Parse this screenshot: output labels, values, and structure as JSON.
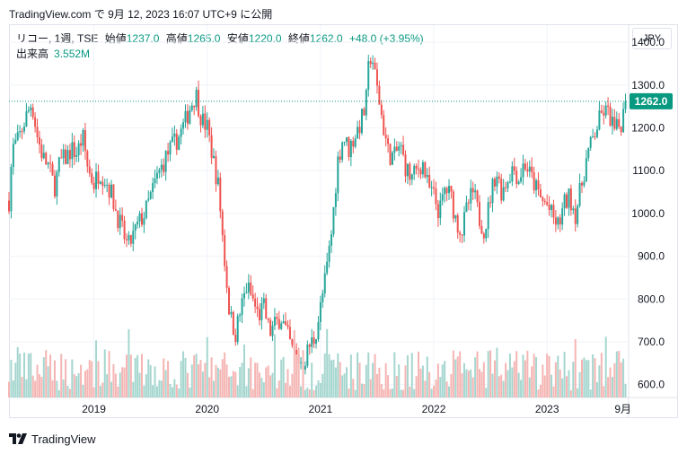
{
  "header": {
    "source": "TradingView.com",
    "connector": "で",
    "timestamp": "9月 12, 2023 16:07 UTC+9",
    "action": "に公開"
  },
  "legend": {
    "symbol": "リコー, 1週, TSE",
    "open_label": "始値",
    "open": "1237.0",
    "high_label": "高値",
    "high": "1265.0",
    "low_label": "安値",
    "low": "1220.0",
    "close_label": "終値",
    "close": "1262.0",
    "change": "+48.0 (+3.95%)",
    "volume_label": "出来高",
    "volume": "3.552M"
  },
  "currency": "JPY",
  "footer": {
    "logo_text": "TradingView"
  },
  "colors": {
    "up": "#26a69a",
    "down": "#ef5350",
    "up_volume": "#a5d6cf",
    "down_volume": "#f4b5b3",
    "price_line": "#089981",
    "grid": "#f0f3fa"
  },
  "chart_data": {
    "type": "candlestick",
    "timeframe": "1週",
    "y_ticks": [
      600,
      700,
      800,
      900,
      1000,
      1100,
      1200,
      1300,
      1400
    ],
    "y_tick_labels": [
      "600.0",
      "700.0",
      "800.0",
      "900.0",
      "1000.0",
      "1100.0",
      "1200.0",
      "1300.0",
      "1400.0"
    ],
    "ylim": [
      570,
      1440
    ],
    "x_range": [
      2018.25,
      2023.72
    ],
    "x_ticks": [
      2019.0,
      2020.0,
      2021.0,
      2022.0,
      2023.0,
      2023.67
    ],
    "x_tick_labels": [
      "2019",
      "2020",
      "2021",
      "2022",
      "2023",
      "9月"
    ],
    "last_price": 1262.0,
    "last_price_label": "1262.0",
    "close_path": [
      [
        2018.25,
        1030
      ],
      [
        2018.28,
        1150
      ],
      [
        2018.33,
        1170
      ],
      [
        2018.38,
        1210
      ],
      [
        2018.45,
        1260
      ],
      [
        2018.5,
        1180
      ],
      [
        2018.55,
        1130
      ],
      [
        2018.6,
        1110
      ],
      [
        2018.65,
        1060
      ],
      [
        2018.7,
        1120
      ],
      [
        2018.75,
        1130
      ],
      [
        2018.8,
        1150
      ],
      [
        2018.85,
        1140
      ],
      [
        2018.9,
        1180
      ],
      [
        2018.95,
        1100
      ],
      [
        2019.0,
        1070
      ],
      [
        2019.05,
        1100
      ],
      [
        2019.1,
        1080
      ],
      [
        2019.15,
        1050
      ],
      [
        2019.2,
        1000
      ],
      [
        2019.25,
        960
      ],
      [
        2019.3,
        920
      ],
      [
        2019.35,
        950
      ],
      [
        2019.4,
        980
      ],
      [
        2019.45,
        1000
      ],
      [
        2019.5,
        1040
      ],
      [
        2019.55,
        1080
      ],
      [
        2019.6,
        1110
      ],
      [
        2019.65,
        1140
      ],
      [
        2019.7,
        1160
      ],
      [
        2019.75,
        1180
      ],
      [
        2019.8,
        1210
      ],
      [
        2019.85,
        1250
      ],
      [
        2019.9,
        1280
      ],
      [
        2019.95,
        1220
      ],
      [
        2020.0,
        1200
      ],
      [
        2020.05,
        1130
      ],
      [
        2020.1,
        1060
      ],
      [
        2020.15,
        900
      ],
      [
        2020.2,
        760
      ],
      [
        2020.25,
        720
      ],
      [
        2020.3,
        780
      ],
      [
        2020.35,
        830
      ],
      [
        2020.4,
        800
      ],
      [
        2020.45,
        760
      ],
      [
        2020.5,
        780
      ],
      [
        2020.55,
        720
      ],
      [
        2020.6,
        740
      ],
      [
        2020.65,
        760
      ],
      [
        2020.7,
        720
      ],
      [
        2020.75,
        680
      ],
      [
        2020.8,
        660
      ],
      [
        2020.85,
        650
      ],
      [
        2020.9,
        690
      ],
      [
        2020.95,
        710
      ],
      [
        2021.0,
        780
      ],
      [
        2021.05,
        860
      ],
      [
        2021.1,
        960
      ],
      [
        2021.15,
        1120
      ],
      [
        2021.2,
        1180
      ],
      [
        2021.25,
        1150
      ],
      [
        2021.3,
        1180
      ],
      [
        2021.35,
        1210
      ],
      [
        2021.4,
        1250
      ],
      [
        2021.42,
        1330
      ],
      [
        2021.45,
        1380
      ],
      [
        2021.48,
        1320
      ],
      [
        2021.52,
        1260
      ],
      [
        2021.55,
        1210
      ],
      [
        2021.6,
        1140
      ],
      [
        2021.65,
        1130
      ],
      [
        2021.7,
        1160
      ],
      [
        2021.75,
        1110
      ],
      [
        2021.8,
        1080
      ],
      [
        2021.85,
        1100
      ],
      [
        2021.9,
        1120
      ],
      [
        2021.95,
        1060
      ],
      [
        2022.0,
        1040
      ],
      [
        2022.05,
        1000
      ],
      [
        2022.1,
        1060
      ],
      [
        2022.15,
        1040
      ],
      [
        2022.2,
        980
      ],
      [
        2022.25,
        960
      ],
      [
        2022.3,
        1020
      ],
      [
        2022.35,
        1050
      ],
      [
        2022.4,
        990
      ],
      [
        2022.45,
        960
      ],
      [
        2022.5,
        1040
      ],
      [
        2022.55,
        1100
      ],
      [
        2022.6,
        1050
      ],
      [
        2022.65,
        1080
      ],
      [
        2022.7,
        1110
      ],
      [
        2022.75,
        1080
      ],
      [
        2022.8,
        1120
      ],
      [
        2022.85,
        1090
      ],
      [
        2022.9,
        1060
      ],
      [
        2022.95,
        1030
      ],
      [
        2023.0,
        1020
      ],
      [
        2023.05,
        990
      ],
      [
        2023.1,
        970
      ],
      [
        2023.15,
        1020
      ],
      [
        2023.2,
        1040
      ],
      [
        2023.25,
        1000
      ],
      [
        2023.3,
        1060
      ],
      [
        2023.35,
        1130
      ],
      [
        2023.4,
        1170
      ],
      [
        2023.45,
        1210
      ],
      [
        2023.5,
        1240
      ],
      [
        2023.55,
        1230
      ],
      [
        2023.6,
        1190
      ],
      [
        2023.65,
        1210
      ],
      [
        2023.7,
        1262
      ]
    ]
  }
}
